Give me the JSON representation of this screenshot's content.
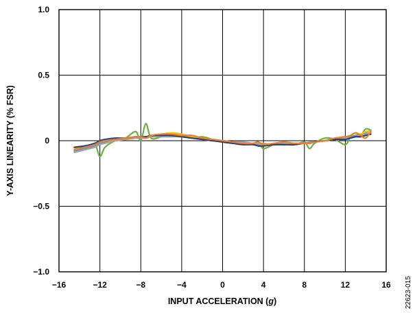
{
  "chart_data": {
    "type": "line",
    "xlabel": "INPUT ACCELERATION (",
    "xlabel_unit": "g",
    "xlabel_close": ")",
    "ylabel": "Y-AXIS LINEARITY (% FSR)",
    "figure_id": "22623-015",
    "xlim": [
      -16,
      16
    ],
    "ylim": [
      -1.0,
      1.0
    ],
    "x_ticks": [
      -16,
      -12,
      -8,
      -4,
      0,
      4,
      8,
      12,
      16
    ],
    "x_tick_labels": [
      "−16",
      "−12",
      "−8",
      "−4",
      "0",
      "4",
      "8",
      "12",
      "16"
    ],
    "y_ticks": [
      1.0,
      0.5,
      0,
      -0.5,
      -1.0
    ],
    "y_tick_labels": [
      "1.0",
      "0.5",
      "0",
      "−0.5",
      "−1.0"
    ],
    "grid": true,
    "legend": "none",
    "x": [
      -14.5,
      -13.5,
      -12.5,
      -12,
      -11.5,
      -10.5,
      -9.5,
      -8.5,
      -8,
      -7.5,
      -7,
      -6,
      -5,
      -4,
      -3,
      -2,
      -1,
      0,
      1,
      2,
      3,
      3.5,
      4,
      5,
      6,
      7,
      8,
      8.5,
      9,
      10,
      11,
      12,
      12.5,
      13,
      13.5,
      14,
      14.5
    ],
    "series": [
      {
        "color": "#5b9bd5",
        "values": [
          -0.08,
          -0.06,
          -0.04,
          -0.02,
          -0.01,
          0.0,
          0.01,
          0.02,
          0.02,
          0.03,
          0.03,
          0.04,
          0.04,
          0.03,
          0.03,
          0.02,
          0.01,
          0.0,
          -0.01,
          -0.02,
          -0.02,
          -0.03,
          -0.03,
          -0.03,
          -0.03,
          -0.02,
          -0.02,
          -0.02,
          -0.01,
          0.0,
          0.01,
          0.02,
          0.03,
          0.04,
          0.05,
          0.06,
          0.08
        ]
      },
      {
        "color": "#70ad47",
        "values": [
          -0.07,
          -0.05,
          -0.03,
          -0.12,
          -0.05,
          0.0,
          0.02,
          0.07,
          0.0,
          0.13,
          0.02,
          0.03,
          0.05,
          0.04,
          0.02,
          0.03,
          0.01,
          -0.01,
          -0.02,
          -0.03,
          -0.02,
          -0.01,
          -0.06,
          -0.03,
          -0.02,
          -0.03,
          -0.01,
          -0.06,
          -0.02,
          0.02,
          0.01,
          -0.03,
          0.03,
          0.06,
          0.04,
          0.09,
          0.08
        ]
      },
      {
        "color": "#ffc000",
        "values": [
          -0.06,
          -0.05,
          -0.02,
          -0.01,
          0.0,
          0.01,
          0.01,
          0.02,
          0.03,
          0.02,
          0.03,
          0.05,
          0.06,
          0.05,
          0.03,
          0.02,
          0.01,
          0.0,
          -0.01,
          -0.02,
          -0.02,
          -0.02,
          -0.03,
          -0.02,
          -0.02,
          -0.02,
          -0.02,
          -0.01,
          -0.01,
          0.0,
          0.02,
          0.03,
          0.04,
          0.06,
          0.05,
          0.07,
          0.07
        ]
      },
      {
        "color": "#a5a5a5",
        "values": [
          -0.09,
          -0.07,
          -0.05,
          -0.03,
          -0.02,
          0.0,
          0.01,
          0.02,
          0.02,
          0.02,
          0.03,
          0.03,
          0.03,
          0.03,
          0.02,
          0.01,
          0.0,
          0.0,
          -0.01,
          -0.01,
          -0.02,
          -0.02,
          -0.02,
          -0.03,
          -0.02,
          -0.02,
          -0.02,
          -0.01,
          -0.01,
          0.0,
          0.01,
          0.02,
          0.02,
          0.03,
          0.04,
          0.05,
          0.06
        ]
      },
      {
        "color": "#264478",
        "values": [
          -0.05,
          -0.04,
          -0.02,
          0.0,
          0.01,
          0.02,
          0.02,
          0.03,
          0.03,
          0.03,
          0.04,
          0.04,
          0.04,
          0.03,
          0.02,
          0.01,
          0.0,
          -0.01,
          -0.02,
          -0.03,
          -0.03,
          -0.04,
          -0.04,
          -0.03,
          -0.03,
          -0.03,
          -0.02,
          -0.02,
          -0.01,
          0.0,
          0.01,
          0.01,
          0.02,
          0.03,
          0.03,
          0.04,
          0.05
        ]
      },
      {
        "color": "#ed7d31",
        "values": [
          -0.07,
          -0.05,
          -0.03,
          -0.01,
          0.0,
          0.01,
          0.02,
          0.03,
          0.03,
          0.02,
          0.04,
          0.05,
          0.05,
          0.04,
          0.04,
          0.02,
          0.01,
          0.0,
          -0.01,
          -0.02,
          -0.02,
          -0.01,
          -0.03,
          -0.02,
          -0.01,
          -0.02,
          -0.02,
          -0.02,
          -0.01,
          0.0,
          0.02,
          0.03,
          0.04,
          0.06,
          0.04,
          0.02,
          0.07
        ]
      }
    ]
  }
}
